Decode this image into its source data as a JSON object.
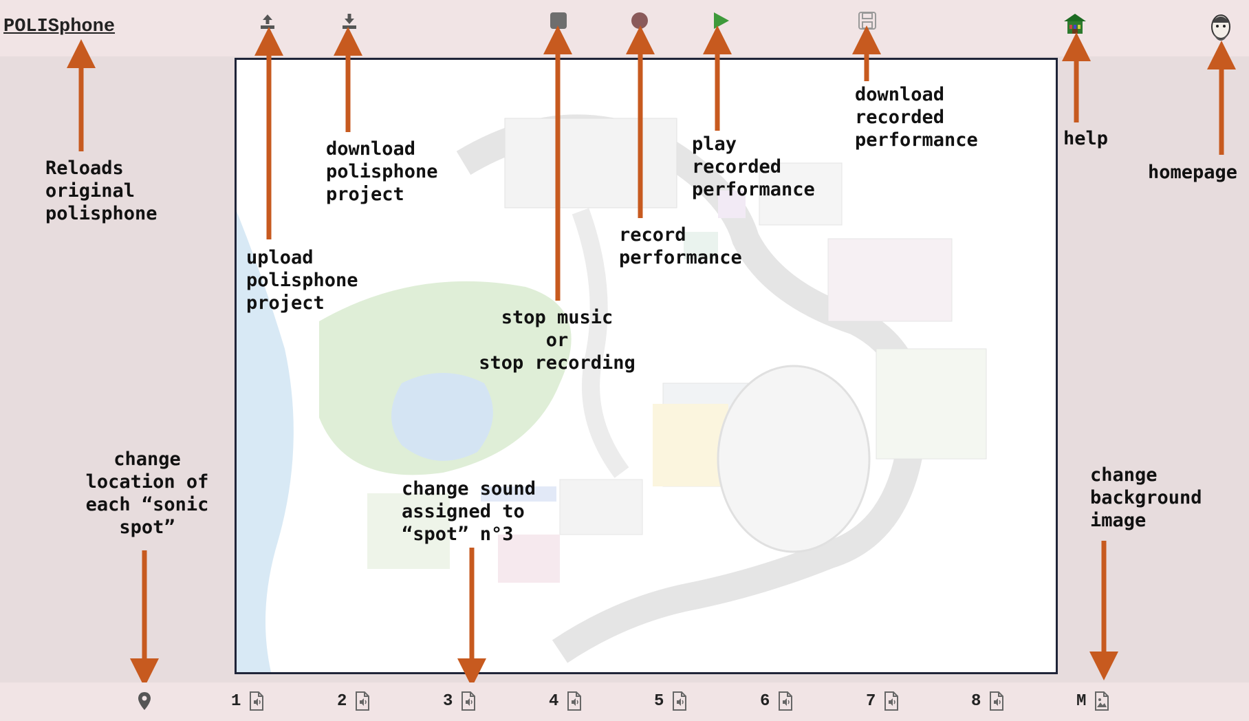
{
  "app": {
    "title": "POLISphone"
  },
  "toolbar": {
    "upload": "upload-icon",
    "download": "download-icon",
    "stop": "stop-icon",
    "record": "record-icon",
    "play": "play-icon",
    "save": "save-icon",
    "help": "help-icon",
    "homepage": "homepage-avatar-icon"
  },
  "annotations": {
    "reload": "Reloads\noriginal\npolisphone",
    "download_project": "download\npolisphone\nproject",
    "upload_project": "upload\npolisphone\nproject",
    "stop": "stop music\nor\nstop recording",
    "record": "record\nperformance",
    "play": "play\nrecorded\nperformance",
    "download_recorded": "download\nrecorded\nperformance",
    "help": "help",
    "homepage": "homepage",
    "change_location": "change\nlocation of\neach “sonic\nspot”",
    "change_sound": "change sound\nassigned to\n“spot” n°3",
    "change_background": "change\nbackground\nimage"
  },
  "bottom": {
    "location_icon": "map-pin-icon",
    "slots": [
      "1",
      "2",
      "3",
      "4",
      "5",
      "6",
      "7",
      "8"
    ],
    "map_slot": "M"
  },
  "colors": {
    "arrow": "#c75a1f",
    "canvas_border": "#1f2438"
  }
}
